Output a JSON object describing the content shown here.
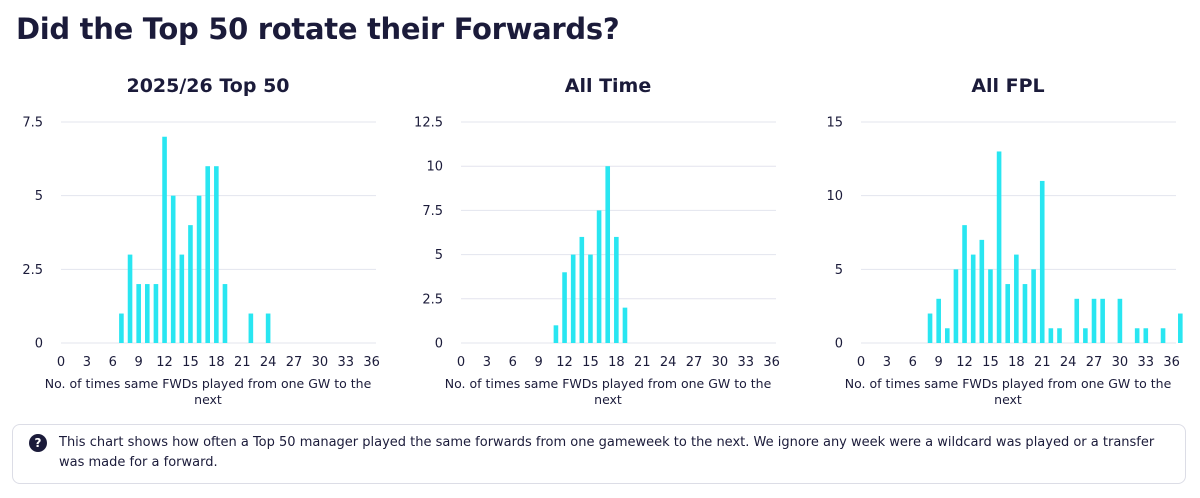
{
  "page": {
    "title": "Did the Top 50 rotate their Forwards?",
    "info": {
      "icon": "question-circle-icon",
      "text": "This chart shows how often a Top 50 manager played the same forwards from one gameweek to the next. We ignore any week were a wildcard was played or a transfer was made for a forward."
    }
  },
  "chart_data": [
    {
      "type": "bar",
      "title": "2025/26 Top 50",
      "xlabel": "No. of times same FWDs played from one GW to the next",
      "x_ticks": [
        0,
        3,
        6,
        9,
        12,
        15,
        18,
        21,
        24,
        27,
        30,
        33,
        36
      ],
      "y_ticks": [
        0,
        2.5,
        5,
        7.5
      ],
      "y_tick_labels": [
        "0",
        "2.5",
        "5",
        "7.5"
      ],
      "ylim": [
        0,
        7.5
      ],
      "grid": true,
      "color": "#29e6f1",
      "x": [
        7,
        8,
        9,
        10,
        11,
        12,
        13,
        14,
        15,
        16,
        17,
        18,
        19,
        22,
        24
      ],
      "values": [
        1,
        3,
        2,
        2,
        2,
        7,
        5,
        3,
        4,
        5,
        6,
        6,
        2,
        1,
        1
      ]
    },
    {
      "type": "bar",
      "title": "All Time",
      "xlabel": "No. of times same FWDs played from one GW to the next",
      "x_ticks": [
        0,
        3,
        6,
        9,
        12,
        15,
        18,
        21,
        24,
        27,
        30,
        33,
        36
      ],
      "y_ticks": [
        0,
        2.5,
        5,
        7.5,
        10,
        12.5
      ],
      "y_tick_labels": [
        "0",
        "2.5",
        "5",
        "7.5",
        "10",
        "12.5"
      ],
      "ylim": [
        0,
        12.5
      ],
      "grid": true,
      "color": "#29e6f1",
      "x": [
        11,
        12,
        13,
        14,
        15,
        16,
        17,
        18,
        19
      ],
      "values": [
        1,
        4,
        5,
        6,
        5,
        7.5,
        10,
        6,
        2
      ]
    },
    {
      "type": "bar",
      "title": "All FPL",
      "xlabel": "No. of times same FWDs played from one GW to the next",
      "x_ticks": [
        0,
        3,
        6,
        9,
        12,
        15,
        18,
        21,
        24,
        27,
        30,
        33,
        36
      ],
      "y_ticks": [
        0,
        5,
        10,
        15
      ],
      "y_tick_labels": [
        "0",
        "5",
        "10",
        "15"
      ],
      "ylim": [
        0,
        15
      ],
      "grid": true,
      "color": "#29e6f1",
      "x": [
        8,
        9,
        10,
        11,
        12,
        13,
        14,
        15,
        16,
        17,
        18,
        19,
        20,
        21,
        22,
        23,
        25,
        26,
        27,
        28,
        30,
        32,
        33,
        35,
        37
      ],
      "values": [
        2,
        3,
        1,
        5,
        8,
        6,
        7,
        5,
        13,
        4,
        6,
        4,
        5,
        11,
        1,
        1,
        3,
        1,
        3,
        3,
        3,
        1,
        1,
        1,
        2
      ]
    }
  ]
}
